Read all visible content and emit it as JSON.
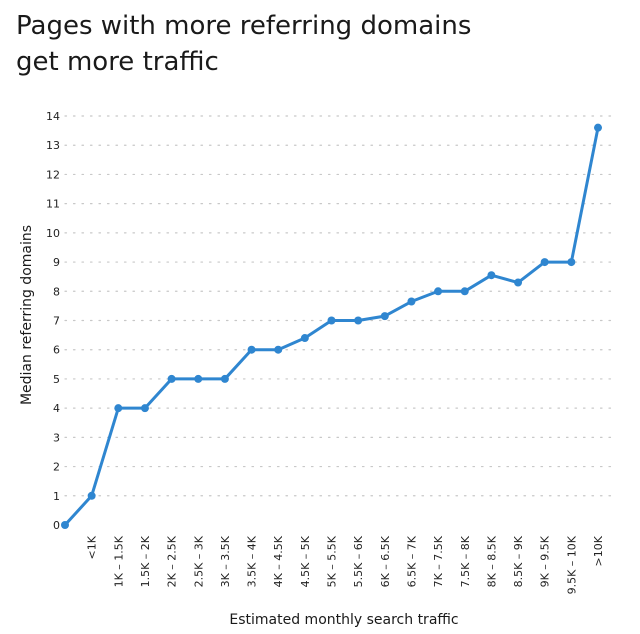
{
  "chart_data": {
    "type": "line",
    "title_lines": [
      "Pages with more referring domains",
      "get more traffic"
    ],
    "xlabel": "Estimated monthly search traffic",
    "ylabel": "Median referring domains",
    "categories": [
      "",
      "<1K",
      "1K – 1.5K",
      "1.5K – 2K",
      "2K – 2.5K",
      "2.5K – 3K",
      "3K – 3.5K",
      "3.5K – 4K",
      "4K – 4.5K",
      "4.5K – 5K",
      "5K – 5.5K",
      "5.5K – 6K",
      "6K – 6.5K",
      "6.5K – 7K",
      "7K – 7.5K",
      "7.5K – 8K",
      "8K – 8.5K",
      "8.5K – 9K",
      "9K – 9.5K",
      "9.5K – 10K",
      ">10K"
    ],
    "series": [
      {
        "values": [
          0,
          1,
          4,
          4,
          5,
          5,
          5,
          6,
          6,
          6.4,
          7,
          7,
          7.15,
          7.65,
          8,
          8,
          8.55,
          8.3,
          9,
          9,
          13.6
        ]
      }
    ],
    "ylim": [
      0,
      14
    ],
    "yticks": [
      0,
      1,
      2,
      3,
      4,
      5,
      6,
      7,
      8,
      9,
      10,
      11,
      12,
      13,
      14
    ],
    "grid": "horizontal-dotted",
    "line_color": "#2f86d0",
    "grid_color": "#c8c8c8"
  }
}
